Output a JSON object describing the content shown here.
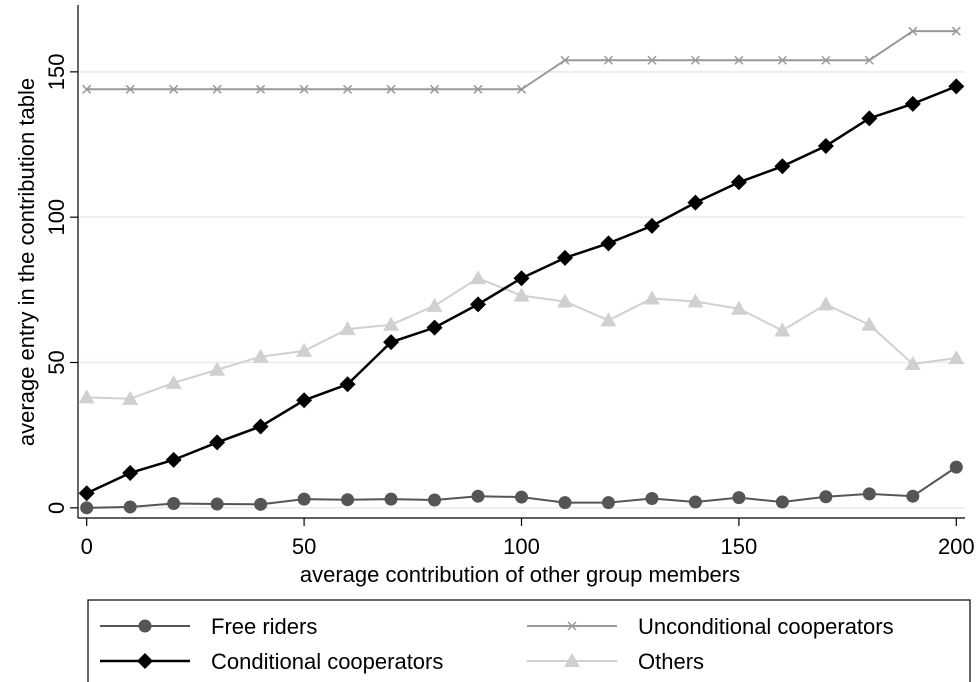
{
  "chart_data": {
    "type": "line",
    "xlabel": "average contribution of other group members",
    "ylabel": "average entry in the contribution table",
    "x": [
      0,
      10,
      20,
      30,
      40,
      50,
      60,
      70,
      80,
      90,
      100,
      110,
      120,
      130,
      140,
      150,
      160,
      170,
      180,
      190,
      200
    ],
    "series": [
      {
        "name": "Free riders",
        "color": "#555555",
        "marker": "circle",
        "values": [
          0,
          0.3,
          1.5,
          1.3,
          1.2,
          3,
          2.8,
          3,
          2.7,
          4,
          3.7,
          1.8,
          1.8,
          3.2,
          2,
          3.5,
          2,
          3.8,
          4.8,
          4,
          14
        ]
      },
      {
        "name": "Conditional cooperators",
        "color": "#000000",
        "marker": "diamond",
        "values": [
          5,
          12,
          16.5,
          22.5,
          28,
          37,
          42.5,
          57,
          62,
          70,
          79,
          86,
          91,
          97,
          105,
          112,
          117.5,
          124.5,
          134,
          139,
          145
        ]
      },
      {
        "name": "Unconditional cooperators",
        "color": "#999999",
        "marker": "x",
        "values": [
          144,
          144,
          144,
          144,
          144,
          144,
          144,
          144,
          144,
          144,
          144,
          154,
          154,
          154,
          154,
          154,
          154,
          154,
          154,
          164,
          164
        ]
      },
      {
        "name": "Others",
        "color": "#d0d0d0",
        "marker": "triangle",
        "values": [
          38,
          37.5,
          43,
          47.5,
          52,
          54,
          61.5,
          63,
          69.5,
          79,
          73,
          71,
          64.5,
          72,
          71,
          68.5,
          61,
          70,
          63,
          49.5,
          51.5
        ]
      }
    ],
    "xlim": [
      -2,
      202
    ],
    "ylim": [
      -3.5,
      173
    ],
    "xticks": [
      0,
      50,
      100,
      150,
      200
    ],
    "yticks": [
      0,
      50,
      100,
      150
    ],
    "grid": true,
    "legend": "bottom"
  }
}
